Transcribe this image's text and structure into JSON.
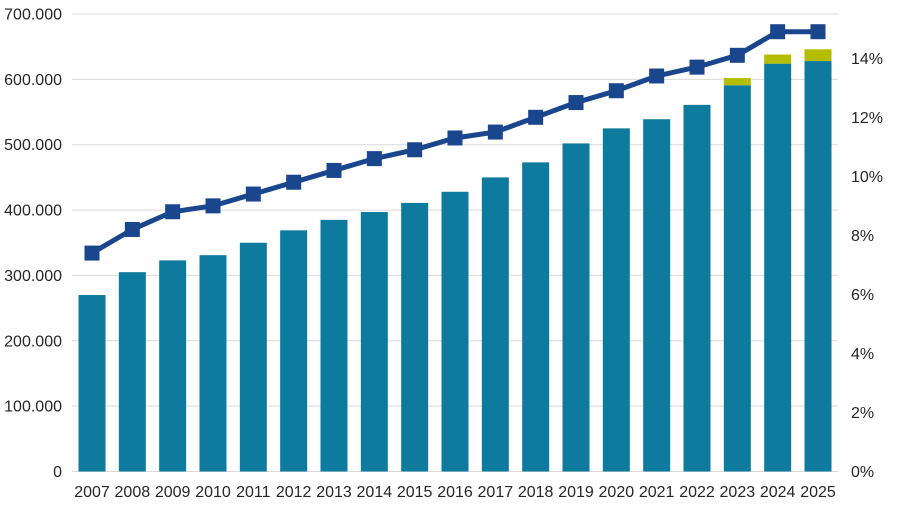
{
  "chart_data": {
    "type": "combo",
    "description": "Stacked bars (left value axis, thousands with dot separators) with percentage line on secondary right axis",
    "categories": [
      "2007",
      "2008",
      "2009",
      "2010",
      "2011",
      "2012",
      "2013",
      "2014",
      "2015",
      "2016",
      "2017",
      "2018",
      "2019",
      "2020",
      "2021",
      "2022",
      "2023",
      "2024",
      "2025"
    ],
    "series": [
      {
        "name": "bars-main",
        "type": "bar",
        "axis": "left",
        "color_key": "bar_primary",
        "values": [
          270000,
          305000,
          323000,
          331000,
          350000,
          369000,
          385000,
          397000,
          411000,
          428000,
          450000,
          473000,
          502000,
          525000,
          539000,
          561000,
          591000,
          624000,
          628000
        ]
      },
      {
        "name": "bars-top-segment",
        "type": "bar",
        "axis": "left",
        "stacked_on": "bars-main",
        "color_key": "bar_secondary",
        "values": [
          0,
          0,
          0,
          0,
          0,
          0,
          0,
          0,
          0,
          0,
          0,
          0,
          0,
          0,
          0,
          0,
          11000,
          14000,
          18000
        ]
      },
      {
        "name": "line-percent",
        "type": "line",
        "axis": "right",
        "color_key": "line",
        "marker": "square",
        "values": [
          7.4,
          8.2,
          8.8,
          9.0,
          9.4,
          9.8,
          10.2,
          10.6,
          10.9,
          11.3,
          11.5,
          12.0,
          12.5,
          12.9,
          13.4,
          13.7,
          14.1,
          14.9,
          14.9
        ]
      }
    ],
    "left_axis": {
      "min": 0,
      "max": 700000,
      "tick_values": [
        0,
        100000,
        200000,
        300000,
        400000,
        500000,
        600000,
        700000
      ],
      "tick_labels": [
        "0",
        "100.000",
        "200.000",
        "300.000",
        "400.000",
        "500.000",
        "600.000",
        "700.000"
      ]
    },
    "right_axis": {
      "min": 0,
      "max": 15.5,
      "tick_values": [
        0,
        2,
        4,
        6,
        8,
        10,
        12,
        14
      ],
      "tick_labels": [
        "0%",
        "2%",
        "4%",
        "6%",
        "8%",
        "10%",
        "12%",
        "14%"
      ]
    },
    "grid": true,
    "legend": false,
    "title": ""
  },
  "colors": {
    "bar_primary": "#0e7a9e",
    "bar_secondary": "#b5bd00",
    "line": "#1a468e",
    "gridline": "#d9d9d9",
    "axis_line": "#d9d9d9",
    "text": "#262626",
    "background": "#ffffff"
  }
}
